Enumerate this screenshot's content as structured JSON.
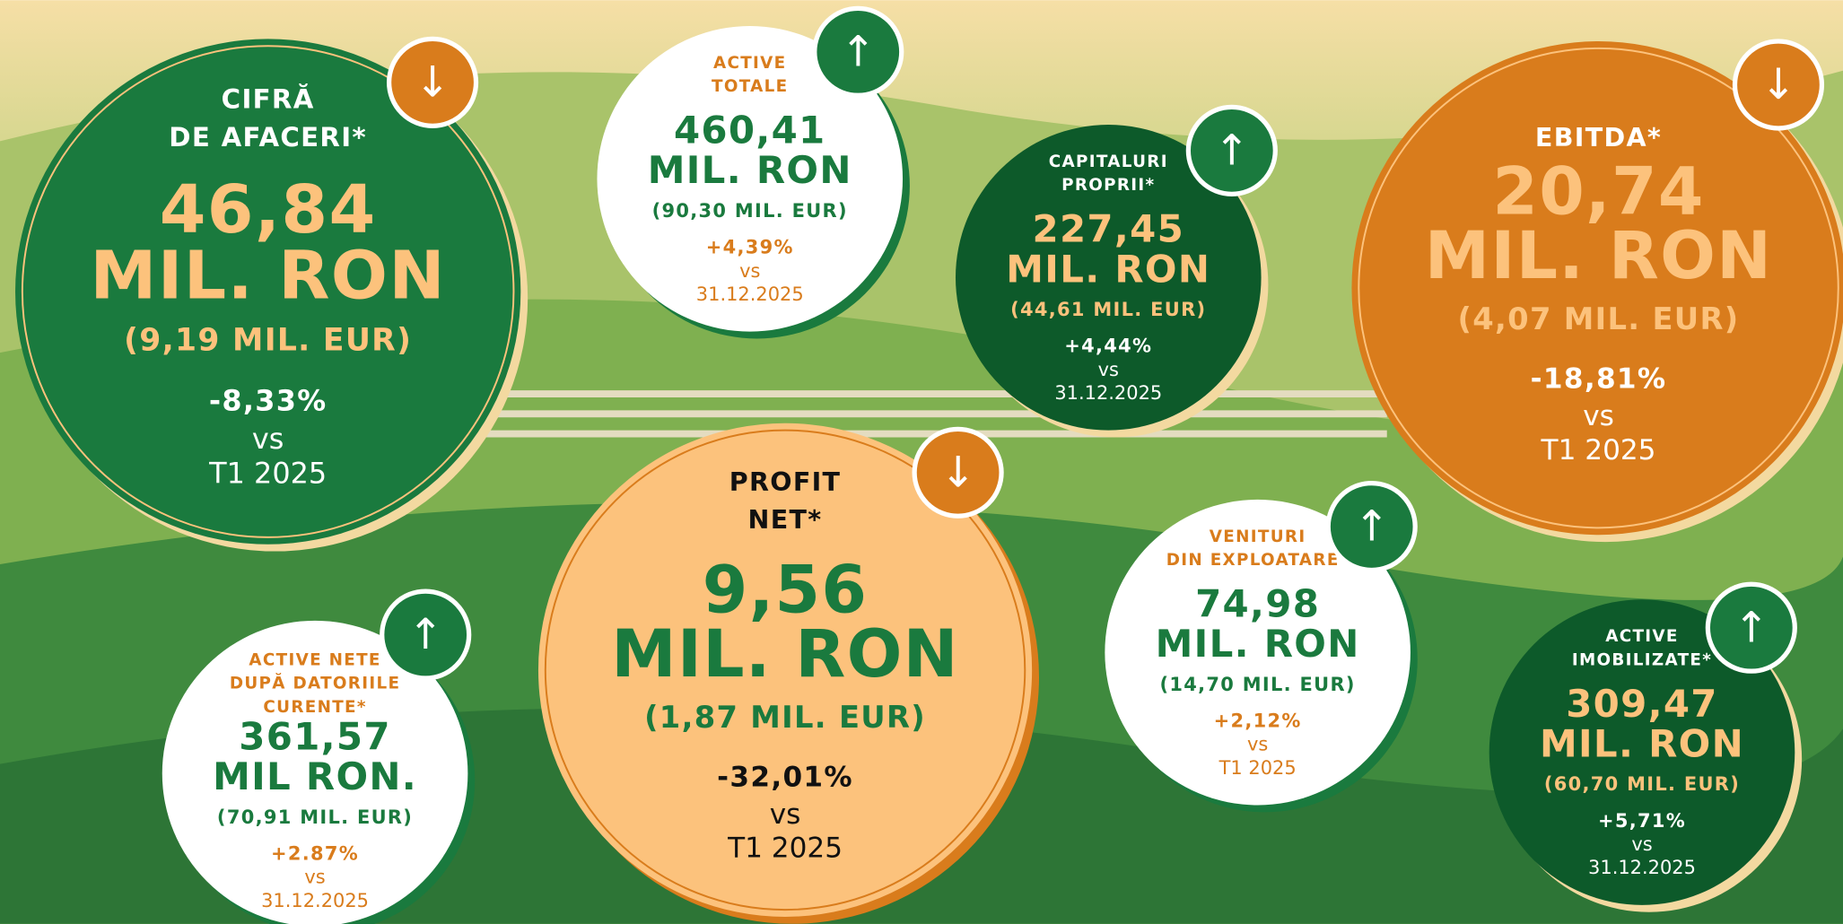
{
  "cards": [
    {
      "title": [
        "CIFRĂ",
        "DE AFACERI*"
      ],
      "value": [
        "46,84",
        "MIL. RON"
      ],
      "eur": "(9,19 MIL. EUR)",
      "change": "-8,33%",
      "vs": "vs",
      "period": "T1 2025",
      "arrow": "↓"
    },
    {
      "title": [
        "ACTIVE",
        "TOTALE"
      ],
      "value": [
        "460,41",
        "MIL. RON"
      ],
      "eur": "(90,30 MIL. EUR)",
      "change": "+4,39%",
      "vs": "vs",
      "period": "31.12.2025",
      "arrow": "↑"
    },
    {
      "title": [
        "CAPITALURI",
        "PROPRII*"
      ],
      "value": [
        "227,45",
        "MIL. RON"
      ],
      "eur": "(44,61 MIL. EUR)",
      "change": "+4,44%",
      "vs": "vs",
      "period": "31.12.2025",
      "arrow": "↑"
    },
    {
      "title": [
        "EBITDA*"
      ],
      "value": [
        "20,74",
        "MIL. RON"
      ],
      "eur": "(4,07 MIL. EUR)",
      "change": "-18,81%",
      "vs": "vs",
      "period": "T1 2025",
      "arrow": "↓"
    },
    {
      "title": [
        "PROFIT",
        "NET*"
      ],
      "value": [
        "9,56",
        "MIL. RON"
      ],
      "eur": "(1,87 MIL. EUR)",
      "change": "-32,01%",
      "vs": "vs",
      "period": "T1 2025",
      "arrow": "↓"
    },
    {
      "title": [
        "VENITURI",
        "DIN EXPLOATARE*"
      ],
      "value": [
        "74,98",
        "MIL. RON"
      ],
      "eur": "(14,70 MIL. EUR)",
      "change": "+2,12%",
      "vs": "vs",
      "period": "T1 2025",
      "arrow": "↑"
    },
    {
      "title": [
        "ACTIVE NETE",
        "DUPĂ DATORIILE",
        "CURENTE*"
      ],
      "value": [
        "361,57",
        "MIL RON."
      ],
      "eur": "(70,91 MIL. EUR)",
      "change": "+2.87%",
      "vs": "vs",
      "period": "31.12.2025",
      "arrow": "↑"
    },
    {
      "title": [
        "ACTIVE",
        "IMOBILIZATE*"
      ],
      "value": [
        "309,47",
        "MIL. RON"
      ],
      "eur": "(60,70 MIL. EUR)",
      "change": "+5,71%",
      "vs": "vs",
      "period": "31.12.2025",
      "arrow": "↑"
    }
  ]
}
